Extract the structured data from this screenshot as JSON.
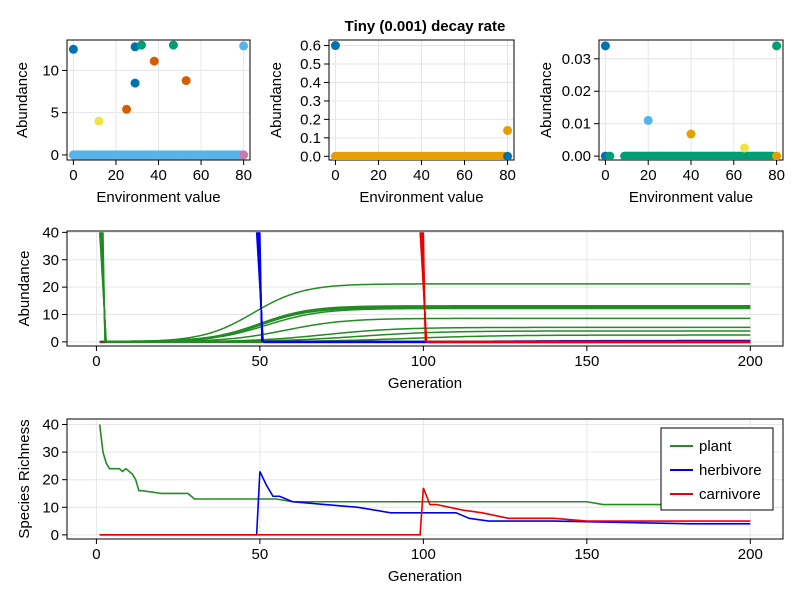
{
  "figure_title": "Tiny (0.001) decay rate",
  "colors": {
    "plant": "#228B22",
    "herbivore": "#0000EE",
    "carnivore": "#EE0000",
    "blue": "#0072B2",
    "skyblue": "#56B4E9",
    "green": "#009E73",
    "yellow": "#F0E442",
    "orange": "#E69F00",
    "vermillion": "#D55E00",
    "pink": "#CC79A7"
  },
  "chart_data": [
    {
      "id": "env-plant",
      "type": "scatter",
      "xlabel": "Environment value",
      "ylabel": "Abundance",
      "xlim": [
        -3,
        83
      ],
      "ylim": [
        -0.6,
        13.6
      ],
      "xticks": [
        0,
        20,
        40,
        60,
        80
      ],
      "xticklabels": [
        "0",
        "20",
        "40",
        "60",
        "80"
      ],
      "yticks": [
        0,
        5,
        10
      ],
      "yticklabels": [
        "0",
        "5",
        "10"
      ],
      "baseline": {
        "from": 0,
        "to": 80,
        "step": 1,
        "y": 0,
        "color": "skyblue"
      },
      "points": [
        {
          "x": 0,
          "y": 12.5,
          "color": "blue"
        },
        {
          "x": 12,
          "y": 4.0,
          "color": "yellow"
        },
        {
          "x": 25,
          "y": 5.4,
          "color": "vermillion"
        },
        {
          "x": 29,
          "y": 8.5,
          "color": "blue"
        },
        {
          "x": 29,
          "y": 12.8,
          "color": "blue"
        },
        {
          "x": 32,
          "y": 13.0,
          "color": "green"
        },
        {
          "x": 38,
          "y": 11.1,
          "color": "vermillion"
        },
        {
          "x": 47,
          "y": 13.0,
          "color": "green"
        },
        {
          "x": 53,
          "y": 8.8,
          "color": "vermillion"
        },
        {
          "x": 80,
          "y": 12.9,
          "color": "skyblue"
        },
        {
          "x": 80,
          "y": 0,
          "color": "pink"
        }
      ]
    },
    {
      "id": "env-herbivore",
      "type": "scatter",
      "title": "Tiny (0.001) decay rate",
      "xlabel": "Environment value",
      "ylabel": "Abundance",
      "xlim": [
        -3,
        83
      ],
      "ylim": [
        -0.02,
        0.63
      ],
      "xticks": [
        0,
        20,
        40,
        60,
        80
      ],
      "xticklabels": [
        "0",
        "20",
        "40",
        "60",
        "80"
      ],
      "yticks": [
        0,
        0.1,
        0.2,
        0.3,
        0.4,
        0.5,
        0.6
      ],
      "yticklabels": [
        "0.0",
        "0.1",
        "0.2",
        "0.3",
        "0.4",
        "0.5",
        "0.6"
      ],
      "baseline": {
        "from": 0,
        "to": 79,
        "step": 1,
        "y": 0,
        "color": "orange"
      },
      "points": [
        {
          "x": 0,
          "y": 0.6,
          "color": "blue"
        },
        {
          "x": 80,
          "y": 0.14,
          "color": "orange"
        },
        {
          "x": 80,
          "y": 0,
          "color": "blue"
        }
      ]
    },
    {
      "id": "env-carnivore",
      "type": "scatter",
      "xlabel": "Environment value",
      "ylabel": "Abundance",
      "xlim": [
        -3,
        83
      ],
      "ylim": [
        -0.0012,
        0.0358
      ],
      "xticks": [
        0,
        20,
        40,
        60,
        80
      ],
      "xticklabels": [
        "0",
        "20",
        "40",
        "60",
        "80"
      ],
      "yticks": [
        0,
        0.01,
        0.02,
        0.03
      ],
      "yticklabels": [
        "0.00",
        "0.01",
        "0.02",
        "0.03"
      ],
      "baseline": {
        "from": 9,
        "to": 78,
        "step": 1,
        "y": 0,
        "color": "green"
      },
      "points": [
        {
          "x": 0,
          "y": 0.034,
          "color": "blue"
        },
        {
          "x": 0,
          "y": 0,
          "color": "blue"
        },
        {
          "x": 2,
          "y": 0,
          "color": "green"
        },
        {
          "x": 20,
          "y": 0.011,
          "color": "skyblue"
        },
        {
          "x": 40,
          "y": 0.0068,
          "color": "orange"
        },
        {
          "x": 65,
          "y": 0.0025,
          "color": "yellow"
        },
        {
          "x": 80,
          "y": 0.034,
          "color": "green"
        },
        {
          "x": 80,
          "y": 0,
          "color": "orange"
        }
      ]
    },
    {
      "id": "abundance-time",
      "type": "line",
      "xlabel": "Generation",
      "ylabel": "Abundance",
      "xlim": [
        -9,
        210
      ],
      "ylim": [
        -1.5,
        40.5
      ],
      "xticks": [
        0,
        50,
        100,
        150,
        200
      ],
      "xticklabels": [
        "0",
        "50",
        "100",
        "150",
        "200"
      ],
      "yticks": [
        0,
        10,
        20,
        30,
        40
      ],
      "yticklabels": [
        "0",
        "10",
        "20",
        "30",
        "40"
      ],
      "logistic_series": [
        {
          "group": "plant",
          "K": 21.2,
          "mid": 48,
          "rate": 0.13,
          "width": 1.5
        },
        {
          "group": "plant",
          "K": 13.0,
          "mid": 50,
          "rate": 0.13,
          "width": 2.5
        },
        {
          "group": "plant",
          "K": 12.6,
          "mid": 50,
          "rate": 0.13,
          "width": 2.5
        },
        {
          "group": "plant",
          "K": 12.2,
          "mid": 52,
          "rate": 0.12,
          "width": 1.5
        },
        {
          "group": "plant",
          "K": 8.6,
          "mid": 58,
          "rate": 0.11,
          "width": 1.5
        },
        {
          "group": "plant",
          "K": 5.3,
          "mid": 70,
          "rate": 0.09,
          "width": 1.5
        },
        {
          "group": "plant",
          "K": 4.0,
          "mid": 80,
          "rate": 0.08,
          "width": 1.5
        },
        {
          "group": "plant",
          "K": 2.5,
          "mid": 95,
          "rate": 0.07,
          "width": 1.5
        },
        {
          "group": "herbivore",
          "K": 0.5,
          "mid": 120,
          "rate": 0.06,
          "width": 1.5
        },
        {
          "group": "carnivore",
          "K": 0.25,
          "mid": 150,
          "rate": 0.05,
          "width": 1.5
        }
      ],
      "spikes": [
        {
          "group": "plant",
          "x0": 1,
          "x1": 3,
          "top": 40
        },
        {
          "group": "herbivore",
          "x0": 49,
          "x1": 51,
          "top": 40
        },
        {
          "group": "carnivore",
          "x0": 99,
          "x1": 101,
          "top": 40
        }
      ]
    },
    {
      "id": "richness-time",
      "type": "line",
      "xlabel": "Generation",
      "ylabel": "Species Richness",
      "xlim": [
        -9,
        210
      ],
      "ylim": [
        -1.5,
        42
      ],
      "xticks": [
        0,
        50,
        100,
        150,
        200
      ],
      "xticklabels": [
        "0",
        "50",
        "100",
        "150",
        "200"
      ],
      "yticks": [
        0,
        10,
        20,
        30,
        40
      ],
      "yticklabels": [
        "0",
        "10",
        "20",
        "30",
        "40"
      ],
      "legend": {
        "position": "top-right",
        "entries": [
          "plant",
          "herbivore",
          "carnivore"
        ]
      },
      "series": [
        {
          "name": "plant",
          "x": [
            1,
            2,
            3,
            4,
            7,
            8,
            9,
            10,
            11,
            12,
            13,
            14,
            20,
            28,
            29,
            30,
            31,
            55,
            60,
            150,
            155,
            182,
            200
          ],
          "y": [
            40,
            30,
            26,
            24,
            24,
            23,
            24,
            23,
            22,
            20,
            16,
            16,
            15,
            15,
            14,
            13,
            13,
            13,
            12,
            12,
            11,
            11,
            11
          ]
        },
        {
          "name": "herbivore",
          "x": [
            1,
            49,
            50,
            52,
            54,
            56,
            58,
            60,
            70,
            80,
            90,
            100,
            110,
            112,
            114,
            120,
            140,
            182,
            200
          ],
          "y": [
            0,
            0,
            23,
            18,
            14,
            14,
            13,
            12,
            11,
            10,
            8,
            8,
            8,
            7,
            6,
            5,
            5,
            4,
            4
          ]
        },
        {
          "name": "carnivore",
          "x": [
            1,
            99,
            100,
            102,
            104,
            108,
            112,
            118,
            122,
            126,
            140,
            150,
            200
          ],
          "y": [
            0,
            0,
            17,
            11,
            11,
            10,
            9,
            8,
            7,
            6,
            6,
            5,
            5
          ]
        }
      ]
    }
  ]
}
